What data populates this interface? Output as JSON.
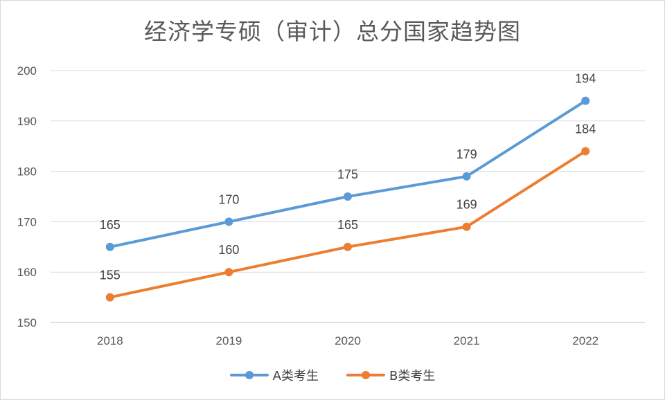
{
  "chart_data": {
    "type": "line",
    "title": "经济学专硕（审计）总分国家趋势图",
    "categories": [
      "2018",
      "2019",
      "2020",
      "2021",
      "2022"
    ],
    "ylim": [
      150,
      200
    ],
    "yticks": [
      150,
      160,
      170,
      180,
      190,
      200
    ],
    "grid": true,
    "legend": "bottom",
    "series": [
      {
        "name": "A类考生",
        "values": [
          165,
          170,
          175,
          179,
          194
        ],
        "color": "#5b9bd5"
      },
      {
        "name": "B类考生",
        "values": [
          155,
          160,
          165,
          169,
          184
        ],
        "color": "#ed7d31"
      }
    ]
  }
}
